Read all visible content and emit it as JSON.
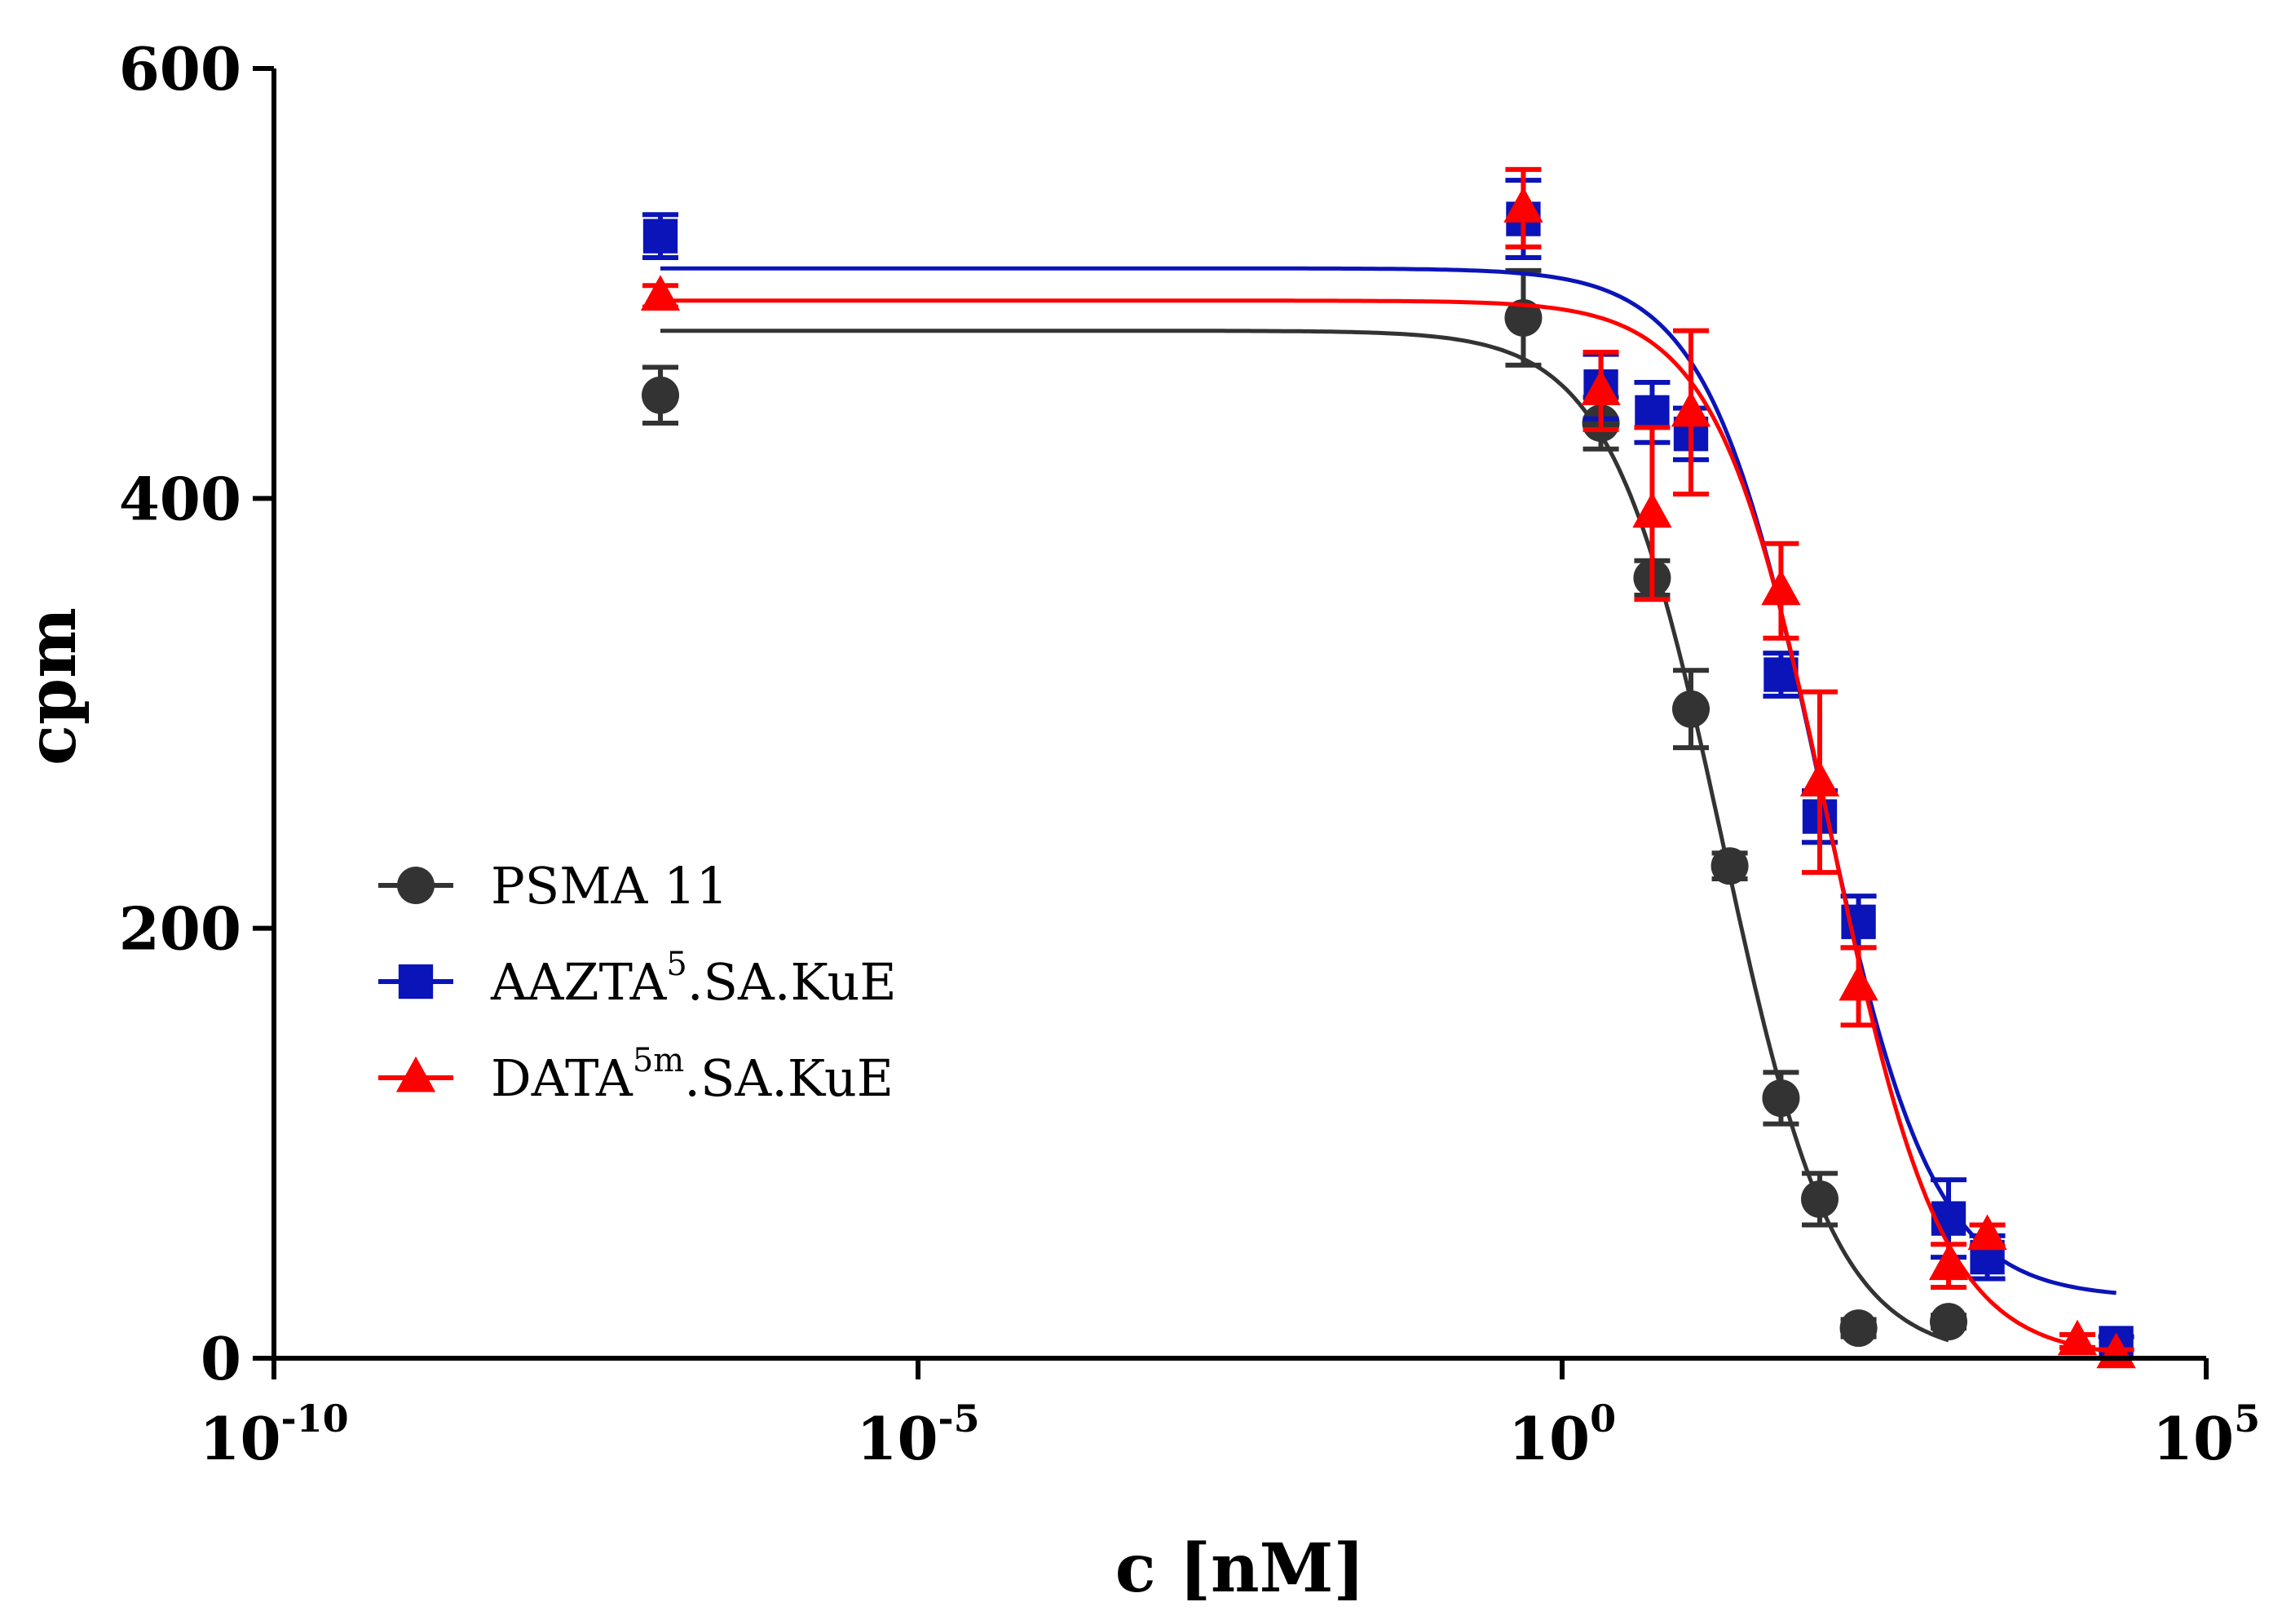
{
  "chart_data": {
    "type": "scatter",
    "title": "",
    "xlabel": "c [nM]",
    "ylabel": "cpm",
    "xscale": "log",
    "xlim": [
      1e-10,
      100000
    ],
    "ylim": [
      0,
      600
    ],
    "x_ticks": [
      {
        "base": "10",
        "exp": "-10",
        "value": 1e-10
      },
      {
        "base": "10",
        "exp": "-5",
        "value": 1e-05
      },
      {
        "base": "10",
        "exp": "0",
        "value": 1
      },
      {
        "base": "10",
        "exp": "5",
        "value": 100000
      }
    ],
    "y_ticks": [
      {
        "label": "0",
        "value": 0
      },
      {
        "label": "200",
        "value": 200
      },
      {
        "label": "400",
        "value": 400
      },
      {
        "label": "600",
        "value": 600
      }
    ],
    "grid": false,
    "legend_position": "center-left",
    "series": [
      {
        "name": "PSMA 11",
        "legend_main": "PSMA 11",
        "legend_sup": "",
        "legend_rest": "",
        "color": "#333333",
        "marker": "circle",
        "x": [
          1e-07,
          0.5,
          2,
          5,
          10,
          20,
          50,
          100,
          200,
          1000,
          2000
        ],
        "y": [
          448,
          484,
          435,
          363,
          302,
          229,
          121,
          74,
          14,
          17,
          null
        ],
        "err": [
          13,
          22,
          12,
          8,
          18,
          6,
          12,
          12,
          4,
          3,
          null
        ],
        "fit": {
          "top": 478,
          "bottom": 0,
          "log_ic50": 1.25,
          "hill": -1.0
        }
      },
      {
        "name": "AAZTA5.SA.KuE",
        "legend_main": "AAZTA",
        "legend_sup": "5",
        "legend_rest": ".SA.KuE",
        "color": "#0a14b8",
        "marker": "square",
        "x": [
          1e-07,
          0.5,
          2,
          5,
          10,
          50,
          100,
          200,
          1000,
          2000,
          20000
        ],
        "y": [
          522,
          530,
          452,
          440,
          430,
          318,
          252,
          203,
          65,
          47,
          7
        ],
        "err": [
          10,
          18,
          15,
          14,
          12,
          10,
          12,
          12,
          18,
          10,
          3
        ],
        "fit": {
          "top": 507,
          "bottom": 28,
          "log_ic50": 2.0,
          "hill": -1.0
        }
      },
      {
        "name": "DATA5m.SA.KuE",
        "legend_main": "DATA",
        "legend_sup": "5m",
        "legend_rest": ".SA.KuE",
        "color": "#ff0000",
        "marker": "triangle",
        "x": [
          1e-07,
          0.5,
          2,
          5,
          10,
          50,
          100,
          200,
          1000,
          2000,
          10000,
          20000
        ],
        "y": [
          494,
          535,
          450,
          393,
          440,
          357,
          268,
          173,
          43,
          57,
          8,
          2
        ],
        "err": [
          5,
          18,
          18,
          40,
          38,
          22,
          42,
          18,
          10,
          5,
          3,
          2
        ],
        "fit": {
          "top": 492,
          "bottom": 0,
          "log_ic50": 2.08,
          "hill": -1.0
        }
      }
    ]
  }
}
